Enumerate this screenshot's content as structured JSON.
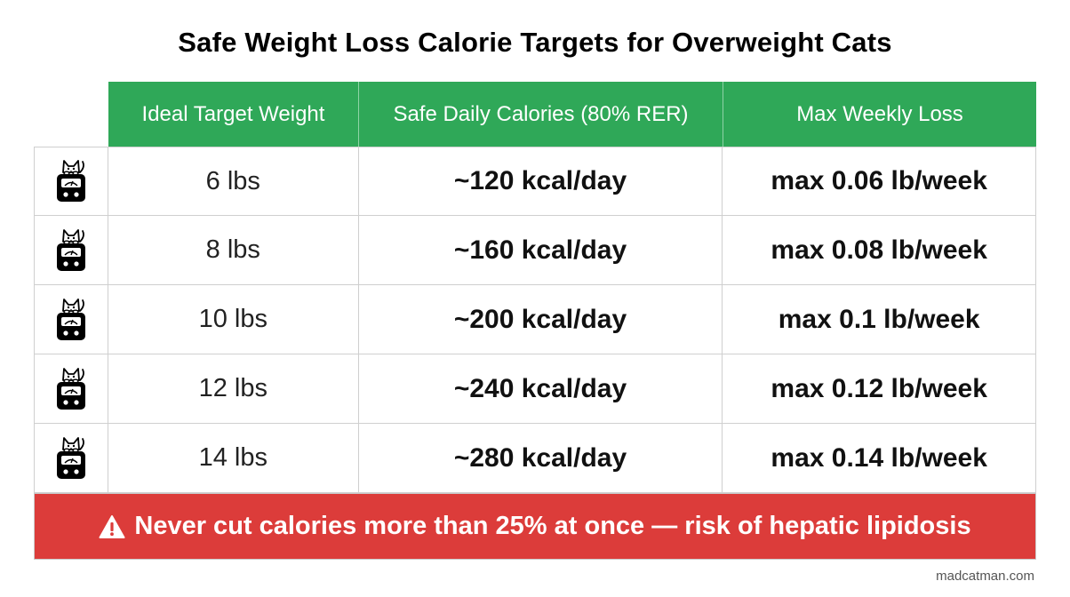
{
  "title": "Safe Weight Loss Calorie Targets for Overweight Cats",
  "headers": [
    "Ideal Target Weight",
    "Safe Daily Calories (80% RER)",
    "Max Weekly Loss"
  ],
  "row_icon": "cat-on-scale-icon",
  "rows": [
    {
      "weight": "6 lbs",
      "calories": "~120 kcal/day",
      "loss": "max 0.06 lb/week"
    },
    {
      "weight": "8 lbs",
      "calories": "~160 kcal/day",
      "loss": "max 0.08 lb/week"
    },
    {
      "weight": "10 lbs",
      "calories": "~200 kcal/day",
      "loss": "max 0.1 lb/week"
    },
    {
      "weight": "12 lbs",
      "calories": "~240 kcal/day",
      "loss": "max 0.12 lb/week"
    },
    {
      "weight": "14 lbs",
      "calories": "~280 kcal/day",
      "loss": "max 0.14 lb/week"
    }
  ],
  "warning": {
    "icon": "warning-triangle-icon",
    "text": "Never cut calories more than 25% at once — risk of hepatic lipidosis"
  },
  "footer": "madcatman.com",
  "colors": {
    "header_bg": "#2fa858",
    "warning_bg": "#dc3c3a"
  }
}
